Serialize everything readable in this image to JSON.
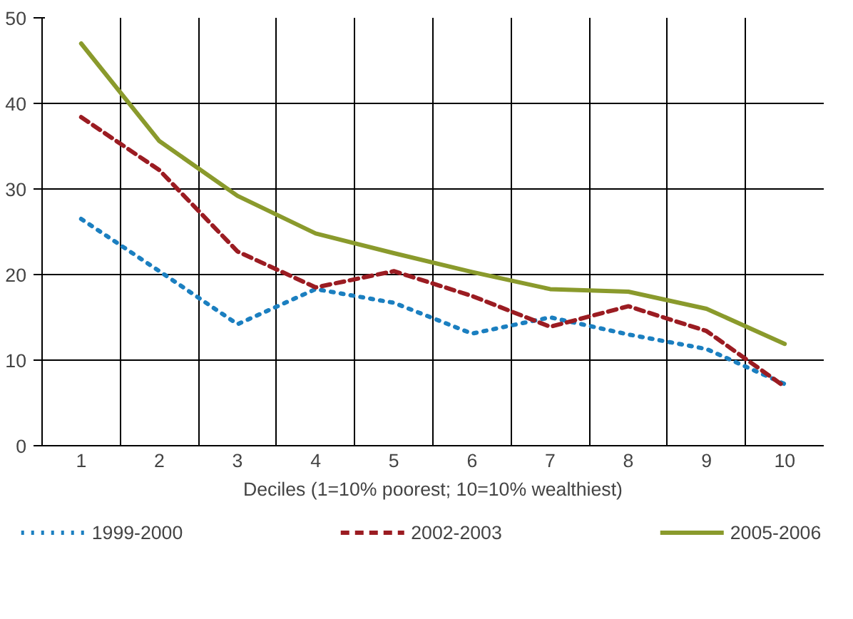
{
  "chart_data": {
    "type": "line",
    "xlabel": "Deciles (1=10% poorest; 10=10% wealthiest)",
    "categories": [
      "1",
      "2",
      "3",
      "4",
      "5",
      "6",
      "7",
      "8",
      "9",
      "10"
    ],
    "ylim": [
      0,
      50
    ],
    "yticks": [
      0,
      10,
      20,
      30,
      40,
      50
    ],
    "grid": true,
    "legend": "bottom",
    "marker": "none",
    "series": [
      {
        "name": "1999-2000",
        "color": "#1b7fc0",
        "line_style": "dotted",
        "values": [
          26.5,
          20.4,
          14.2,
          18.3,
          16.7,
          13.1,
          15,
          13,
          11.3,
          7.2
        ]
      },
      {
        "name": "2002-2003",
        "color": "#9b1c22",
        "line_style": "dashed",
        "values": [
          38.4,
          32.2,
          22.7,
          18.5,
          20.4,
          17.5,
          13.9,
          16.3,
          13.4,
          6.9
        ]
      },
      {
        "name": "2005-2006",
        "color": "#8a9a2c",
        "line_style": "solid",
        "values": [
          47,
          35.6,
          29.2,
          24.8,
          22.5,
          20.3,
          18.3,
          18,
          16,
          11.9
        ]
      }
    ]
  }
}
